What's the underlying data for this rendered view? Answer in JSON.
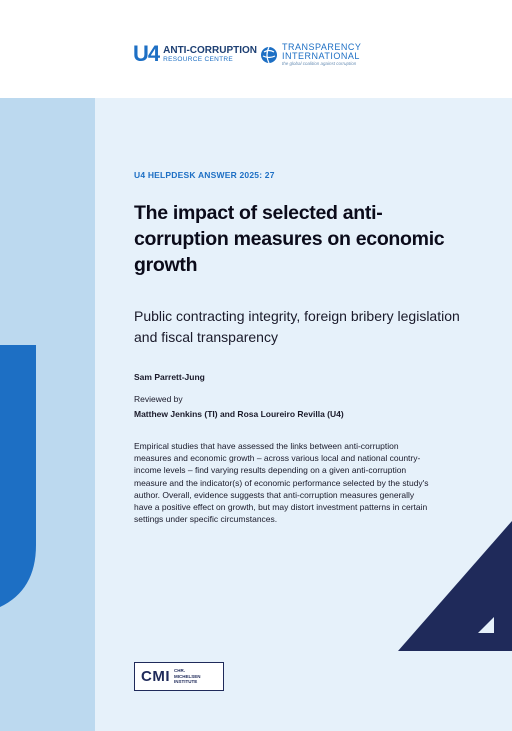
{
  "logos": {
    "u4": {
      "mark": "U4",
      "title": "ANTI-CORRUPTION",
      "subtitle": "RESOURCE CENTRE"
    },
    "ti": {
      "title_line1": "TRANSPARENCY",
      "title_line2": "INTERNATIONAL",
      "tagline": "the global coalition against corruption"
    },
    "cmi": {
      "mark": "CMI",
      "line1": "CHR.",
      "line2": "MICHELSEN",
      "line3": "INSTITUTE"
    }
  },
  "series": "U4 HELPDESK ANSWER 2025: 27",
  "title": "The impact of selected anti-corruption measures on economic growth",
  "subtitle": "Public contracting integrity, foreign bribery legislation and fiscal transparency",
  "author": "Sam Parrett-Jung",
  "reviewed_label": "Reviewed by",
  "reviewers": "Matthew Jenkins (TI) and Rosa Loureiro Revilla (U4)",
  "abstract": "Empirical studies that have assessed the links between anti-corruption measures and economic growth – across various local and national country-income levels – find varying results depending on a given anti-corruption measure and the indicator(s) of economic performance selected by the study's author. Overall, evidence suggests that anti-corruption measures generally have a positive effect on growth, but may distort investment patterns in certain settings under specific circumstances.",
  "colors": {
    "brand_blue": "#1d6fc4",
    "navy": "#1f2a5a",
    "light_band": "#bcd9ef",
    "panel": "#e6f1fa"
  }
}
